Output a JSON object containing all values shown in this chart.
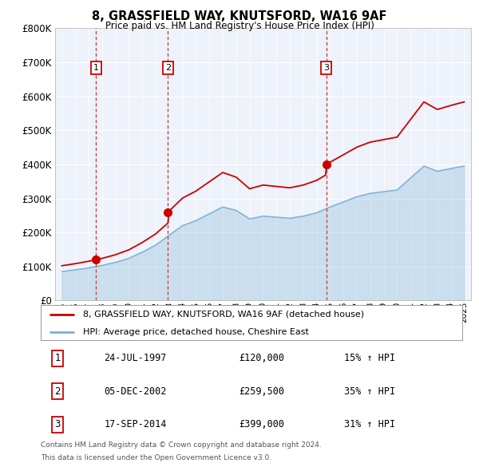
{
  "title1": "8, GRASSFIELD WAY, KNUTSFORD, WA16 9AF",
  "title2": "Price paid vs. HM Land Registry's House Price Index (HPI)",
  "ylim": [
    0,
    800000
  ],
  "xlim": [
    1994.5,
    2025.5
  ],
  "yticks": [
    0,
    100000,
    200000,
    300000,
    400000,
    500000,
    600000,
    700000,
    800000
  ],
  "ytick_labels": [
    "£0",
    "£100K",
    "£200K",
    "£300K",
    "£400K",
    "£500K",
    "£600K",
    "£700K",
    "£800K"
  ],
  "xticks": [
    1995,
    1996,
    1997,
    1998,
    1999,
    2000,
    2001,
    2002,
    2003,
    2004,
    2005,
    2006,
    2007,
    2008,
    2009,
    2010,
    2011,
    2012,
    2013,
    2014,
    2015,
    2016,
    2017,
    2018,
    2019,
    2020,
    2021,
    2022,
    2023,
    2024,
    2025
  ],
  "purchase_dates": [
    1997.56,
    2002.92,
    2014.71
  ],
  "purchase_prices": [
    120000,
    259500,
    399000
  ],
  "purchase_labels": [
    "1",
    "2",
    "3"
  ],
  "legend_line1": "8, GRASSFIELD WAY, KNUTSFORD, WA16 9AF (detached house)",
  "legend_line2": "HPI: Average price, detached house, Cheshire East",
  "table_rows": [
    [
      "1",
      "24-JUL-1997",
      "£120,000",
      "15% ↑ HPI"
    ],
    [
      "2",
      "05-DEC-2002",
      "£259,500",
      "35% ↑ HPI"
    ],
    [
      "3",
      "17-SEP-2014",
      "£399,000",
      "31% ↑ HPI"
    ]
  ],
  "footer1": "Contains HM Land Registry data © Crown copyright and database right 2024.",
  "footer2": "This data is licensed under the Open Government Licence v3.0.",
  "line_color_property": "#cc0000",
  "line_color_hpi": "#7ab0d4",
  "background_color": "#eef2fa",
  "grid_color": "#ffffff",
  "dashed_line_color": "#cc4444",
  "label_box_color": "#cc0000"
}
